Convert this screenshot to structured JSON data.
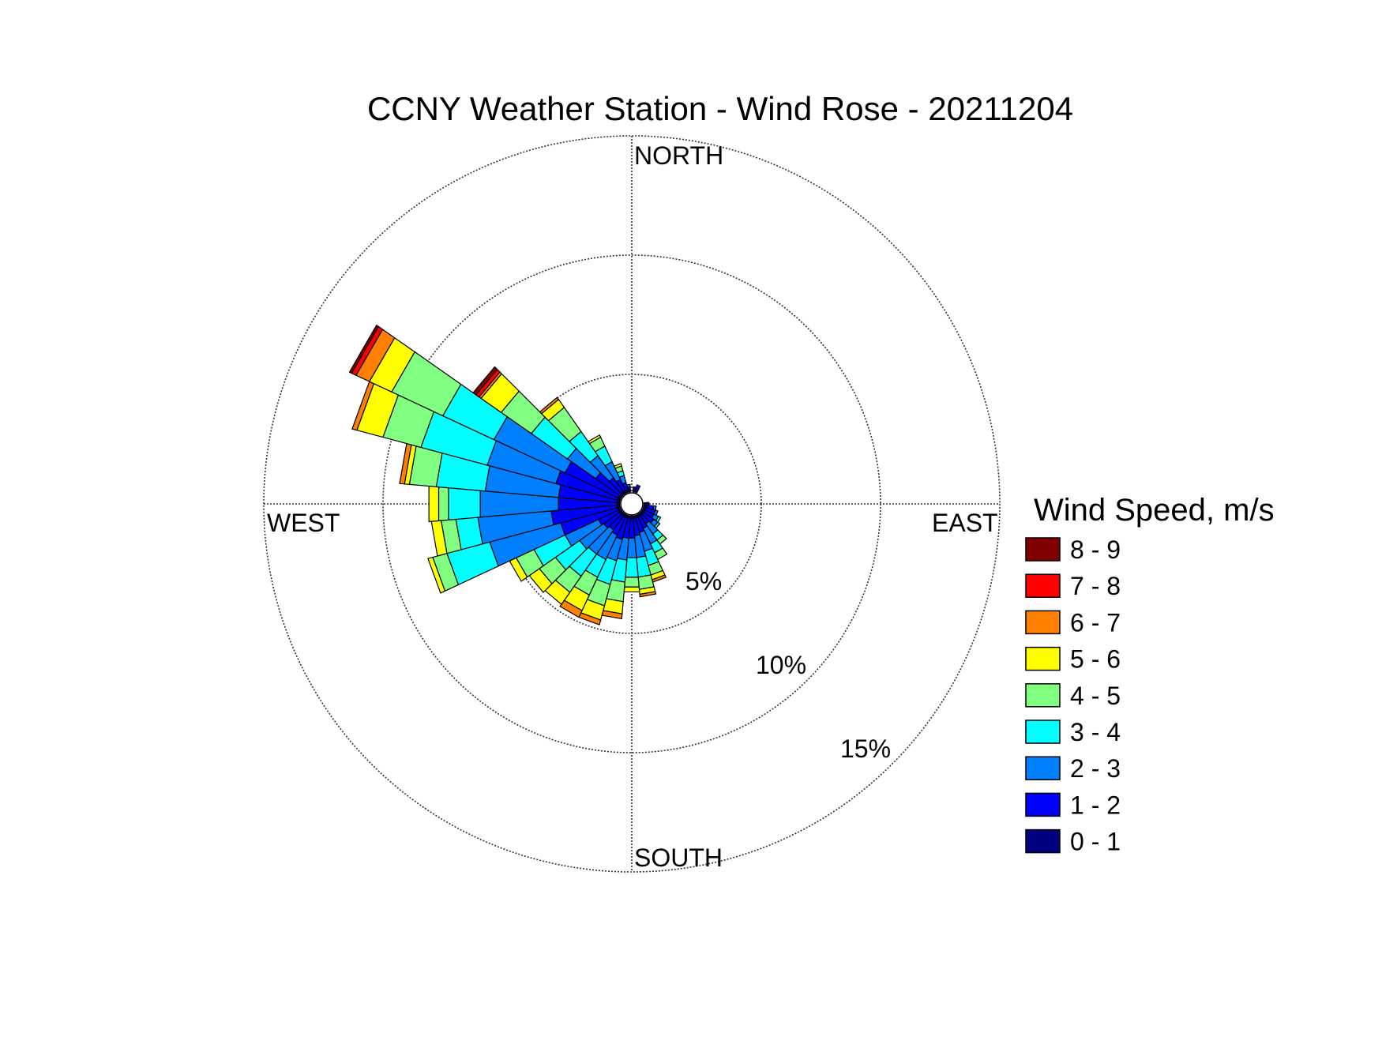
{
  "chart_data": {
    "type": "wind-rose",
    "title": "CCNY Weather Station - Wind Rose - 20211204",
    "directions": [
      "NORTH",
      "EAST",
      "SOUTH",
      "WEST"
    ],
    "ring_labels": [
      "5%",
      "10%",
      "15%"
    ],
    "rings": [
      5,
      10,
      15
    ],
    "rmax": 15,
    "center_offset": 0.5,
    "legend_title": "Wind Speed, m/s",
    "speed_bins": [
      "0 - 1",
      "1 - 2",
      "2 - 3",
      "3 - 4",
      "4 - 5",
      "5 - 6",
      "6 - 7",
      "7 - 8",
      "8 - 9"
    ],
    "bin_colors": [
      "#000080",
      "#0000ff",
      "#0080ff",
      "#00ffff",
      "#80ff80",
      "#ffff00",
      "#ff8000",
      "#ff0000",
      "#800000"
    ],
    "sector_width_deg": 10,
    "sectors": [
      {
        "dir": 10,
        "cum": [
          0.6,
          0.7
        ]
      },
      {
        "dir": 20,
        "cum": [
          0.6,
          0.8
        ]
      },
      {
        "dir": 90,
        "cum": [
          0.6,
          0.7
        ]
      },
      {
        "dir": 100,
        "cum": [
          0.6,
          0.9,
          1.0
        ]
      },
      {
        "dir": 110,
        "cum": [
          0.6,
          1.0,
          1.1
        ]
      },
      {
        "dir": 120,
        "cum": [
          0.6,
          1.0,
          1.2,
          1.3
        ]
      },
      {
        "dir": 130,
        "cum": [
          0.6,
          1.1,
          1.3,
          1.4
        ]
      },
      {
        "dir": 140,
        "cum": [
          0.6,
          1.0,
          1.5,
          1.8,
          2.0
        ]
      },
      {
        "dir": 150,
        "cum": [
          0.6,
          1.1,
          1.8,
          2.2,
          2.5
        ]
      },
      {
        "dir": 160,
        "cum": [
          0.6,
          1.2,
          2.0,
          2.6,
          3.0,
          3.2,
          3.3
        ]
      },
      {
        "dir": 170,
        "cum": [
          0.6,
          1.3,
          2.2,
          3.0,
          3.5,
          3.7,
          3.8
        ]
      },
      {
        "dir": 180,
        "cum": [
          0.6,
          1.4,
          2.2,
          3.0,
          3.4,
          3.6
        ]
      },
      {
        "dir": 190,
        "cum": [
          0.6,
          1.4,
          2.3,
          3.2,
          4.0,
          4.5,
          4.7
        ]
      },
      {
        "dir": 200,
        "cum": [
          0.6,
          1.5,
          2.4,
          3.4,
          4.3,
          4.9,
          5.1
        ]
      },
      {
        "dir": 210,
        "cum": [
          0.6,
          1.4,
          2.5,
          3.3,
          4.1,
          4.8,
          5.1
        ]
      },
      {
        "dir": 220,
        "cum": [
          0.6,
          1.3,
          2.5,
          3.6,
          4.4,
          5.0
        ]
      },
      {
        "dir": 230,
        "cum": [
          0.6,
          1.4,
          2.6,
          3.8,
          4.6,
          5.1
        ]
      },
      {
        "dir": 240,
        "cum": [
          0.6,
          1.5,
          3.0,
          4.4,
          5.2,
          5.5
        ]
      },
      {
        "dir": 250,
        "cum": [
          0.6,
          3.0,
          6.0,
          7.8,
          8.4,
          8.6
        ]
      },
      {
        "dir": 260,
        "cum": [
          0.6,
          3.3,
          6.3,
          7.2,
          7.8,
          8.2
        ]
      },
      {
        "dir": 270,
        "cum": [
          0.6,
          3.0,
          6.2,
          7.5,
          7.9,
          8.3
        ]
      },
      {
        "dir": 280,
        "cum": [
          0.6,
          3.0,
          6.0,
          8.0,
          9.1,
          9.3,
          9.5
        ]
      },
      {
        "dir": 290,
        "cum": [
          0.6,
          3.2,
          6.1,
          8.9,
          10.5,
          11.6,
          11.8
        ]
      },
      {
        "dir": 300,
        "cum": [
          0.6,
          3.0,
          6.2,
          8.5,
          10.8,
          11.8,
          12.4,
          12.6,
          12.7
        ]
      },
      {
        "dir": 310,
        "cum": [
          0.6,
          1.8,
          3.2,
          5.0,
          6.5,
          7.5,
          7.6,
          7.75,
          7.9
        ]
      },
      {
        "dir": 320,
        "cum": [
          0.6,
          1.3,
          2.4,
          3.6,
          4.8,
          5.2,
          5.3
        ]
      },
      {
        "dir": 330,
        "cum": [
          0.6,
          1.1,
          1.9,
          2.6,
          3.0,
          3.1
        ]
      },
      {
        "dir": 340,
        "cum": [
          0.6,
          0.9,
          1.2,
          1.4,
          1.6,
          1.7
        ]
      },
      {
        "dir": 350,
        "cum": [
          0.6,
          0.7,
          0.8
        ]
      }
    ]
  }
}
